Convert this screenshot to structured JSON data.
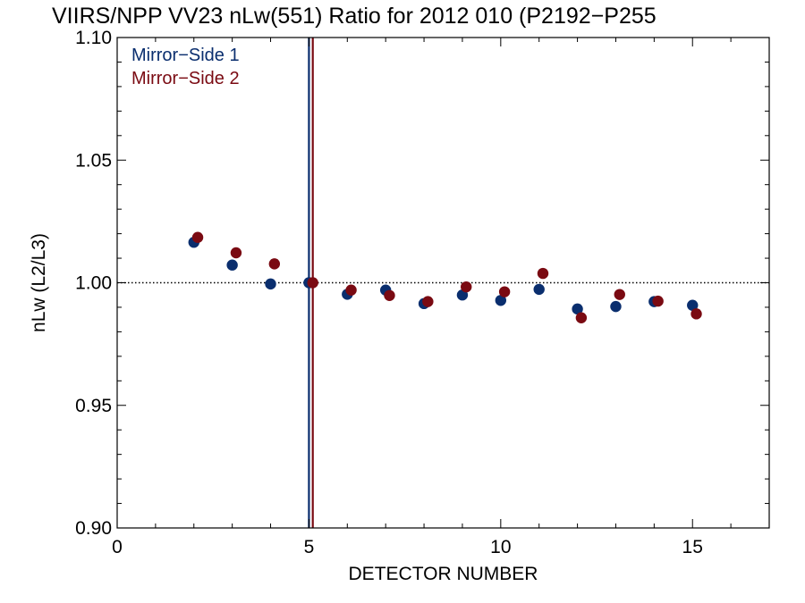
{
  "chart_data": {
    "type": "scatter",
    "title": "VIIRS/NPP VV23 nLw(551) Ratio for 2012 010 (P2192−P255",
    "xlabel": "DETECTOR NUMBER",
    "ylabel": "nLw (L2/L3)",
    "xlim": [
      0,
      17
    ],
    "ylim": [
      0.9,
      1.1
    ],
    "x_ticks": [
      0,
      5,
      10,
      15
    ],
    "x_tick_labels": [
      "0",
      "5",
      "10",
      "15"
    ],
    "y_ticks": [
      0.9,
      0.95,
      1.0,
      1.05,
      1.1
    ],
    "y_tick_labels": [
      "0.90",
      "0.95",
      "1.00",
      "1.05",
      "1.10"
    ],
    "reference_line_y": 1.0,
    "vertical_lines": [
      {
        "x": 5.0,
        "color": "#0a2e6e"
      },
      {
        "x": 5.1,
        "color": "#7a0a12"
      }
    ],
    "legend_position": "top-left",
    "series": [
      {
        "name": "Mirror−Side 1",
        "color": "#0a2e6e",
        "x": [
          2,
          3,
          4,
          5,
          6,
          7,
          8,
          9,
          10,
          11,
          12,
          13,
          14,
          15
        ],
        "y": [
          1.0165,
          1.0072,
          0.9995,
          1.0,
          0.9953,
          0.997,
          0.9915,
          0.995,
          0.9928,
          0.9973,
          0.9893,
          0.9903,
          0.9923,
          0.9908
        ]
      },
      {
        "name": "Mirror−Side 2",
        "color": "#7a0a12",
        "x": [
          2.1,
          3.1,
          4.1,
          5.1,
          6.1,
          7.1,
          8.1,
          9.1,
          10.1,
          11.1,
          12.1,
          13.1,
          14.1,
          15.1
        ],
        "y": [
          1.0185,
          1.0122,
          1.0077,
          1.0,
          0.997,
          0.9948,
          0.9923,
          0.9983,
          0.9963,
          1.0038,
          0.9857,
          0.9952,
          0.9925,
          0.9873
        ]
      }
    ]
  }
}
